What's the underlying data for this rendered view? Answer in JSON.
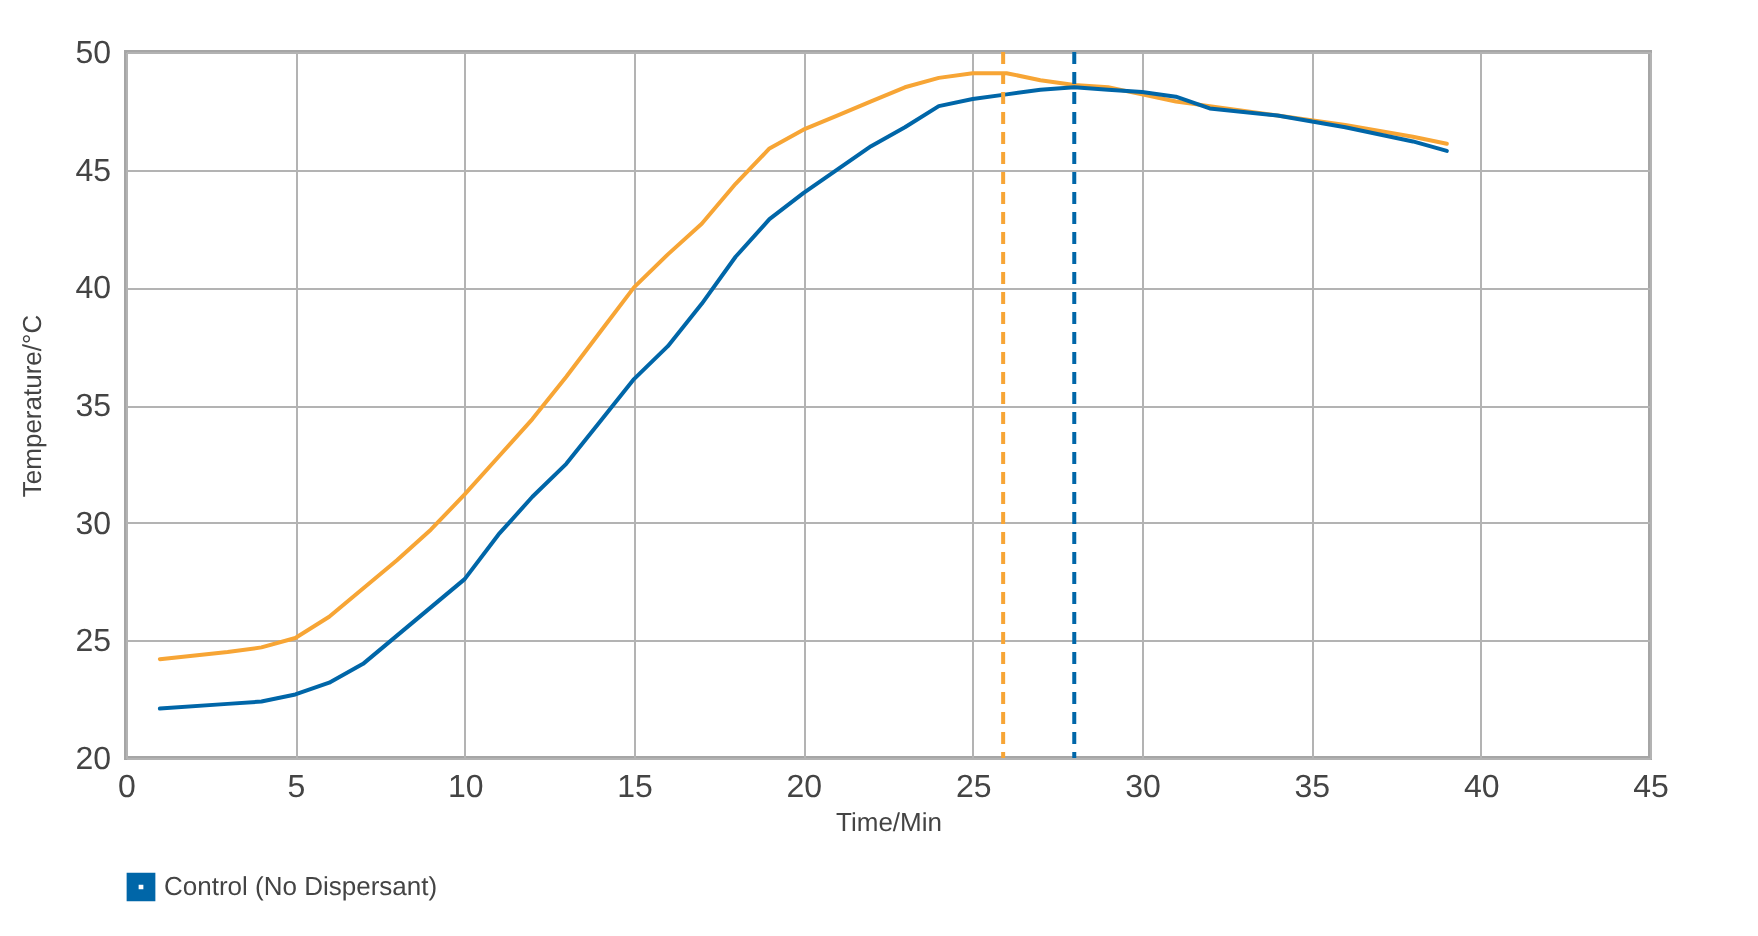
{
  "chart_data": {
    "type": "line",
    "xlabel": "Time/Min",
    "ylabel": "Temperature/°C",
    "xlim": [
      0,
      45
    ],
    "xticks": [
      0,
      5,
      10,
      15,
      20,
      25,
      30,
      35,
      40,
      45
    ],
    "ylim": [
      20,
      50
    ],
    "yticks": [
      20,
      25,
      30,
      35,
      40,
      45,
      50
    ],
    "grid": true,
    "legend": "bottom",
    "line_style": "solid",
    "series": [
      {
        "color": "#f7a535",
        "x": [
          1,
          3,
          4,
          5,
          6,
          7,
          8,
          9,
          10,
          11,
          12,
          13,
          14,
          15,
          16,
          17,
          18,
          19,
          20,
          21,
          22,
          23,
          24,
          25,
          26,
          27,
          28,
          29,
          30,
          31,
          32,
          34,
          36,
          38,
          39
        ],
        "values": [
          24.2,
          24.5,
          24.7,
          25.1,
          26,
          27.2,
          28.4,
          29.7,
          31.2,
          32.8,
          34.4,
          36.2,
          38.1,
          40,
          41.4,
          42.7,
          44.4,
          45.9,
          46.7,
          47.3,
          47.9,
          48.5,
          48.9,
          49.1,
          49.1,
          48.8,
          48.6,
          48.5,
          48.2,
          47.9,
          47.7,
          47.3,
          46.9,
          46.4,
          46.1
        ]
      },
      {
        "name": "Control (No Dispersant)",
        "color": "#0066a8",
        "x": [
          1,
          3,
          4,
          5,
          6,
          7,
          8,
          9,
          10,
          11,
          12,
          13,
          14,
          15,
          16,
          17,
          18,
          19,
          20,
          21,
          22,
          23,
          24,
          25,
          26,
          27,
          28,
          29,
          30,
          31,
          32,
          34,
          36,
          38,
          39
        ],
        "values": [
          22.1,
          22.3,
          22.4,
          22.7,
          23.2,
          24,
          25.2,
          26.4,
          27.6,
          29.5,
          31.1,
          32.5,
          34.3,
          36.1,
          37.5,
          39.3,
          41.3,
          42.9,
          44,
          45,
          46,
          46.8,
          47.7,
          48,
          48.2,
          48.4,
          48.5,
          48.4,
          48.3,
          48.1,
          47.6,
          47.3,
          46.8,
          46.2,
          45.8
        ]
      }
    ],
    "ref_lines": [
      {
        "axis": "x",
        "value": 25.9,
        "color": "#f7a535",
        "line_style": "dashed"
      },
      {
        "axis": "x",
        "value": 28,
        "color": "#0066a8",
        "line_style": "dashed"
      }
    ]
  }
}
